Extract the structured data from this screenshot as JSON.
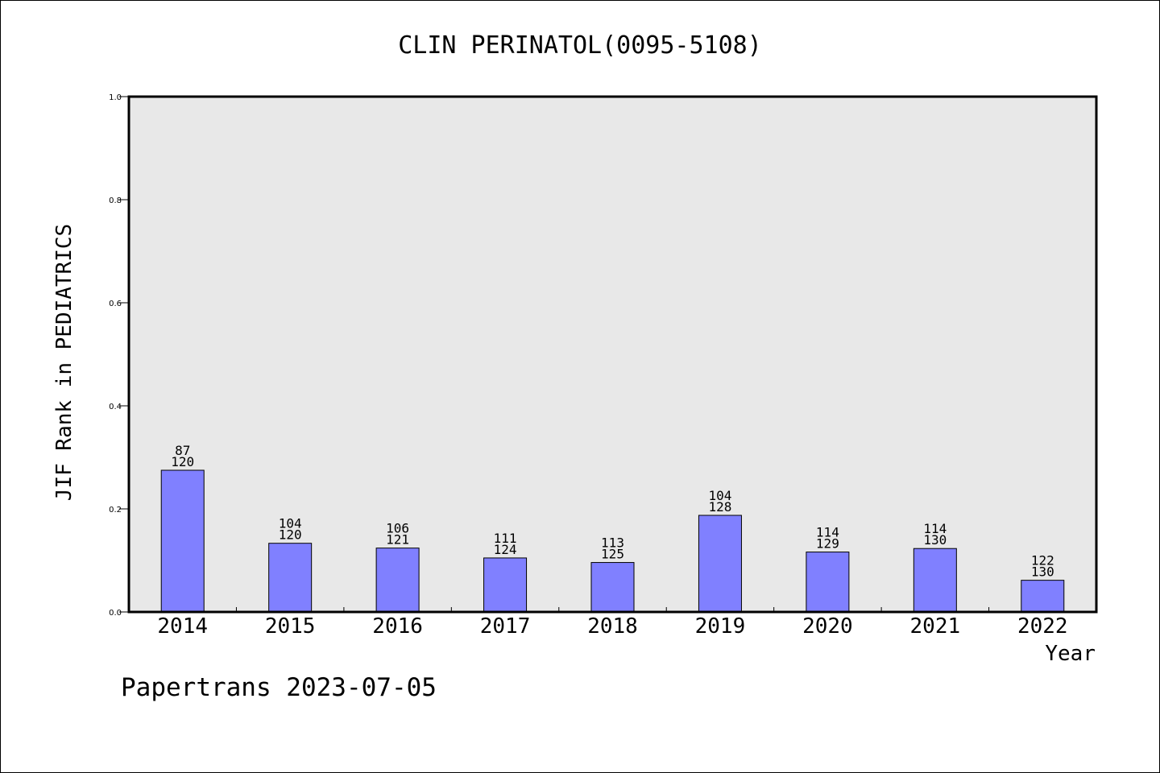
{
  "chart_data": {
    "type": "bar",
    "title": "CLIN PERINATOL(0095-5108)",
    "xlabel": "Year",
    "ylabel": "JIF Rank in PEDIATRICS",
    "ylim": [
      0,
      1.0
    ],
    "yticks": [
      "0.0",
      "0.2",
      "0.4",
      "0.6",
      "0.8",
      "1.0"
    ],
    "ytick_values": [
      0,
      0.2,
      0.4,
      0.6,
      0.8,
      1.0
    ],
    "categories": [
      "2014",
      "2015",
      "2016",
      "2017",
      "2018",
      "2019",
      "2020",
      "2021",
      "2022"
    ],
    "values": [
      0.275,
      0.1333,
      0.124,
      0.1048,
      0.096,
      0.1875,
      0.1163,
      0.1231,
      0.0615
    ],
    "rank": [
      "87",
      "104",
      "106",
      "111",
      "113",
      "104",
      "114",
      "114",
      "122"
    ],
    "total": [
      "120",
      "120",
      "121",
      "124",
      "125",
      "128",
      "129",
      "130",
      "130"
    ],
    "bar_color": "#8080ff",
    "plot_background": "#e8e8e8",
    "grid": false,
    "legend": "none"
  },
  "footer": {
    "watermark": "Papertrans 2023-07-05"
  }
}
